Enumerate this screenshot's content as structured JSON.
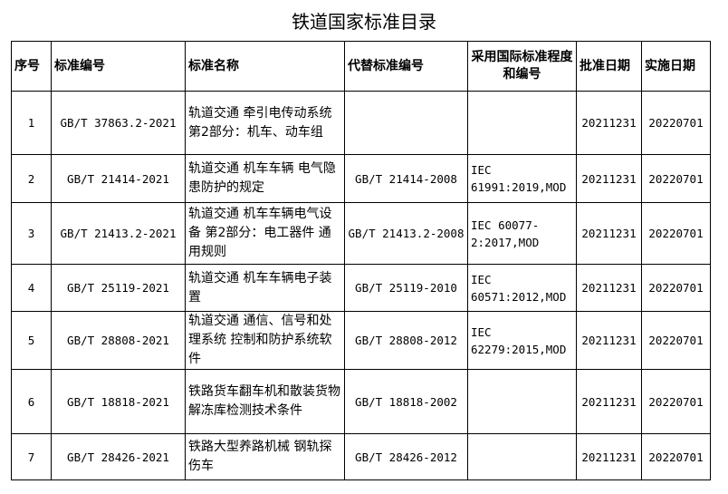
{
  "title": "铁道国家标准目录",
  "headers": [
    "序号",
    "标准编号",
    "标准名称",
    "代替标准编号",
    "采用国际标准程度和编号",
    "批准日期",
    "实施日期"
  ],
  "rows": [
    {
      "no": "1",
      "code": "GB/T 37863.2-2021",
      "name": "轨道交通 牵引电传动系统 第2部分：机车、动车组",
      "replaces": "",
      "iec": "",
      "approved": "20211231",
      "effective": "20220701"
    },
    {
      "no": "2",
      "code": "GB/T 21414-2021",
      "name": "轨道交通 机车车辆 电气隐患防护的规定",
      "replaces": "GB/T 21414-2008",
      "iec": "IEC 61991:2019,MOD",
      "approved": "20211231",
      "effective": "20220701"
    },
    {
      "no": "3",
      "code": "GB/T 21413.2-2021",
      "name": "轨道交通 机车车辆电气设备 第2部分：电工器件 通用规则",
      "replaces": "GB/T 21413.2-2008",
      "iec": "IEC 60077-2:2017,MOD",
      "approved": "20211231",
      "effective": "20220701"
    },
    {
      "no": "4",
      "code": "GB/T 25119-2021",
      "name": "轨道交通 机车车辆电子装置",
      "replaces": "GB/T 25119-2010",
      "iec": "IEC 60571:2012,MOD",
      "approved": "20211231",
      "effective": "20220701"
    },
    {
      "no": "5",
      "code": "GB/T 28808-2021",
      "name": "轨道交通 通信、信号和处理系统 控制和防护系统软件",
      "replaces": "GB/T 28808-2012",
      "iec": "IEC 62279:2015,MOD",
      "approved": "20211231",
      "effective": "20220701"
    },
    {
      "no": "6",
      "code": "GB/T 18818-2021",
      "name": "铁路货车翻车机和散装货物解冻库检测技术条件",
      "replaces": "GB/T 18818-2002",
      "iec": "",
      "approved": "20211231",
      "effective": "20220701"
    },
    {
      "no": "7",
      "code": "GB/T 28426-2021",
      "name": "铁路大型养路机械 钢轨探伤车",
      "replaces": "GB/T 28426-2012",
      "iec": "",
      "approved": "20211231",
      "effective": "20220701"
    }
  ]
}
